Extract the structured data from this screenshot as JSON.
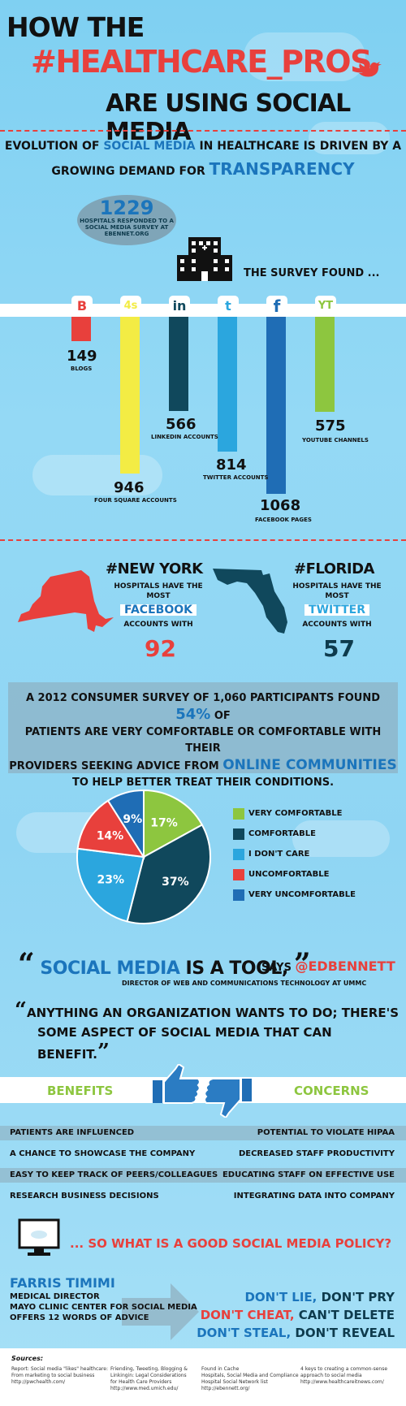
{
  "header": {
    "line1": "HOW THE",
    "line2": "#HEALTHCARE_PROS",
    "line3": "ARE USING SOCIAL MEDIA"
  },
  "intro": {
    "a": "EVOLUTION OF",
    "b": "SOCIAL MEDIA",
    "c": "IN HEALTHCARE IS DRIVEN BY A",
    "d": "GROWING DEMAND FOR",
    "e": "TRANSPARENCY"
  },
  "survey_bubble": {
    "number": "1229",
    "text1": "HOSPITALS RESPONDED TO A",
    "text2": "SOCIAL MEDIA SURVEY AT",
    "text3": "EBENNET.ORG"
  },
  "survey_found": "THE SURVEY FOUND ...",
  "platforms": [
    {
      "icon": "B",
      "value": "149",
      "label": "BLOGS",
      "amount": 149,
      "color": "#e8403c"
    },
    {
      "icon": "4s",
      "value": "946",
      "label": "FOUR SQUARE ACCOUNTS",
      "amount": 946,
      "color": "#f3ec44"
    },
    {
      "icon": "in",
      "value": "566",
      "label": "LINKEDIN ACCOUNTS",
      "amount": 566,
      "color": "#10485c"
    },
    {
      "icon": "t",
      "value": "814",
      "label": "TWITTER ACCOUNTS",
      "amount": 814,
      "color": "#2ba6de"
    },
    {
      "icon": "f",
      "value": "1068",
      "label": "FACEBOOK PAGES",
      "amount": 1068,
      "color": "#1f6db5"
    },
    {
      "icon": "YT",
      "value": "575",
      "label": "YOUTUBE CHANNELS",
      "amount": 575,
      "color": "#8dc63f"
    }
  ],
  "states": {
    "ny": {
      "tag": "#NEW YORK",
      "line1": "HOSPITALS HAVE THE",
      "line2": "MOST",
      "platform": "FACEBOOK",
      "line3": "ACCOUNTS WITH",
      "value": "92"
    },
    "fl": {
      "tag": "#FLORIDA",
      "line1": "HOSPITALS HAVE THE",
      "line2": "MOST",
      "platform": "TWITTER",
      "line3": "ACCOUNTS WITH",
      "value": "57"
    }
  },
  "consumer_survey": {
    "l1": "A 2012 CONSUMER SURVEY OF 1,060 PARTICIPANTS FOUND",
    "pct": "54%",
    "of": "OF",
    "l2": "PATIENTS ARE VERY COMFORTABLE OR COMFORTABLE WITH THEIR",
    "l3": "PROVIDERS SEEKING ADVICE FROM",
    "highlight": "ONLINE COMMUNITIES",
    "l4": "TO HELP BETTER TREAT THEIR CONDITIONS."
  },
  "pie": {
    "slices": [
      {
        "label": "VERY COMFORTABLE",
        "value": 17,
        "text": "17%",
        "color": "#8dc63f"
      },
      {
        "label": "COMFORTABLE",
        "value": 37,
        "text": "37%",
        "color": "#10485c"
      },
      {
        "label": "I DON'T CARE",
        "value": 23,
        "text": "23%",
        "color": "#2ba6de"
      },
      {
        "label": "UNCOMFORTABLE",
        "value": 14,
        "text": "14%",
        "color": "#e8403c"
      },
      {
        "label": "VERY UNCOMFORTABLE",
        "value": 9,
        "text": "9%",
        "color": "#1f6db5"
      }
    ]
  },
  "quote": {
    "a": "SOCIAL MEDIA",
    "b": "IS A TOOL,",
    "says": "SAYS",
    "handle": "@EDBENNETT",
    "role": "DIRECTOR OF WEB AND COMMUNICATIONS TECHNOLOGY AT UMMC",
    "line1": "ANYTHING AN ORGANIZATION WANTS TO DO; THERE'S",
    "line2": "SOME ASPECT OF SOCIAL MEDIA THAT CAN BENEFIT."
  },
  "benefits_title": "BENEFITS",
  "concerns_title": "CONCERNS",
  "benefits": [
    "PATIENTS ARE INFLUENCED",
    "A CHANCE TO SHOWCASE THE COMPANY",
    "EASY TO KEEP TRACK OF PEERS/COLLEAGUES",
    "RESEARCH BUSINESS DECISIONS"
  ],
  "concerns": [
    "POTENTIAL TO VIOLATE HIPAA",
    "DECREASED STAFF PRODUCTIVITY",
    "EDUCATING STAFF ON EFFECTIVE USE",
    "INTEGRATING DATA INTO COMPANY"
  ],
  "policy_q": "... SO WHAT IS A GOOD SOCIAL MEDIA POLICY?",
  "farris": {
    "name": "FARRIS TIMIMI",
    "l1": "MEDICAL DIRECTOR",
    "l2": "MAYO CLINIC CENTER FOR SOCIAL MEDIA",
    "l3": "OFFERS 12 WORDS OF ADVICE"
  },
  "advice": {
    "a1": "DON'T LIE,",
    "a2": "DON'T PRY",
    "b1": "DON'T CHEAT,",
    "b2": "CAN'T DELETE",
    "c1": "DON'T STEAL,",
    "c2": "DON'T REVEAL"
  },
  "sources": {
    "title": "Sources:",
    "s1": [
      "Report: Social media \"likes\" healthcare:",
      "From marketing to social business",
      "http://pwchealth.com/"
    ],
    "s2": [
      "Friending, Tweeting, Blogging &",
      "Linkingin: Legal Considerations",
      "for Health Care Providers",
      "http://www.med.umich.edu/"
    ],
    "s3": [
      "Found in Cache",
      "Hospitals, Social Media and Compliance",
      "Hospital Social Network list",
      "http://ebennett.org/"
    ],
    "s4": [
      "4 keys to creating a common-sense",
      "approach to social media",
      "http://www.healthcareitnews.com/"
    ]
  }
}
